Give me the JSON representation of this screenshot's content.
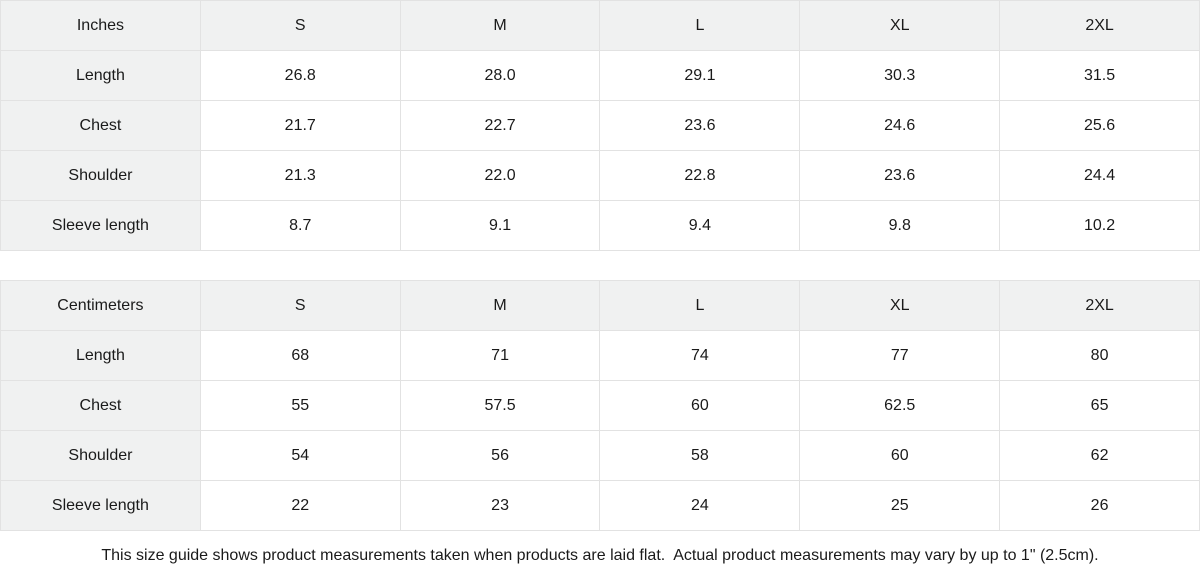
{
  "colors": {
    "header_bg": "#f0f1f1",
    "cell_bg": "#ffffff",
    "border": "#e2e2e2",
    "text": "#1a1a1a"
  },
  "tables": [
    {
      "unit_label": "Inches",
      "size_headers": [
        "S",
        "M",
        "L",
        "XL",
        "2XL"
      ],
      "rows": [
        {
          "label": "Length",
          "values": [
            "26.8",
            "28.0",
            "29.1",
            "30.3",
            "31.5"
          ]
        },
        {
          "label": "Chest",
          "values": [
            "21.7",
            "22.7",
            "23.6",
            "24.6",
            "25.6"
          ]
        },
        {
          "label": "Shoulder",
          "values": [
            "21.3",
            "22.0",
            "22.8",
            "23.6",
            "24.4"
          ]
        },
        {
          "label": "Sleeve length",
          "values": [
            "8.7",
            "9.1",
            "9.4",
            "9.8",
            "10.2"
          ]
        }
      ]
    },
    {
      "unit_label": "Centimeters",
      "size_headers": [
        "S",
        "M",
        "L",
        "XL",
        "2XL"
      ],
      "rows": [
        {
          "label": "Length",
          "values": [
            "68",
            "71",
            "74",
            "77",
            "80"
          ]
        },
        {
          "label": "Chest",
          "values": [
            "55",
            "57.5",
            "60",
            "62.5",
            "65"
          ]
        },
        {
          "label": "Shoulder",
          "values": [
            "54",
            "56",
            "58",
            "60",
            "62"
          ]
        },
        {
          "label": "Sleeve length",
          "values": [
            "22",
            "23",
            "24",
            "25",
            "26"
          ]
        }
      ]
    }
  ],
  "footer": {
    "note": "This size guide shows product measurements taken when products are laid flat.  Actual product measurements may vary by up to 1\" (2.5cm)."
  }
}
